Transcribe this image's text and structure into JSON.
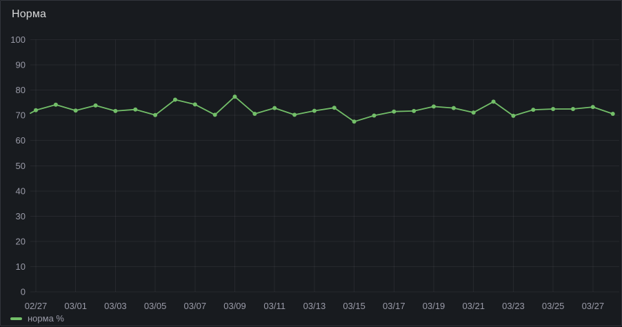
{
  "panel": {
    "title": "Норма"
  },
  "legend": {
    "items": [
      {
        "label": "норма %",
        "color": "#73bf69"
      }
    ]
  },
  "colors": {
    "page_background": "#111217",
    "panel_background": "#181b1f",
    "panel_border": "#33363c",
    "gridline": "rgba(204,204,220,0.08)",
    "tick_text": "rgba(204,204,220,0.72)",
    "title_text": "#d8d9da",
    "series_green": "#73bf69"
  },
  "chart_data": {
    "type": "line",
    "title": "Норма",
    "xlabel": "",
    "ylabel": "",
    "ylim": [
      0,
      100
    ],
    "grid": true,
    "point_markers": true,
    "legend_position": "bottom-left",
    "y_ticks": [
      0,
      10,
      20,
      30,
      40,
      50,
      60,
      70,
      80,
      90,
      100
    ],
    "x": [
      "02/27",
      "02/28",
      "03/01",
      "03/02",
      "03/03",
      "03/04",
      "03/05",
      "03/06",
      "03/07",
      "03/08",
      "03/09",
      "03/10",
      "03/11",
      "03/12",
      "03/13",
      "03/14",
      "03/15",
      "03/16",
      "03/17",
      "03/18",
      "03/19",
      "03/20",
      "03/21",
      "03/22",
      "03/23",
      "03/24",
      "03/25",
      "03/26",
      "03/27",
      "03/28"
    ],
    "x_tick_labels": [
      "02/27",
      "03/01",
      "03/03",
      "03/05",
      "03/07",
      "03/09",
      "03/11",
      "03/13",
      "03/15",
      "03/17",
      "03/19",
      "03/21",
      "03/23",
      "03/25",
      "03/27"
    ],
    "series": [
      {
        "name": "норма %",
        "color": "#73bf69",
        "values": [
          72.0,
          74.2,
          71.9,
          73.9,
          71.7,
          72.3,
          70.1,
          76.2,
          74.3,
          70.2,
          77.4,
          70.6,
          72.9,
          70.2,
          71.8,
          73.0,
          67.5,
          69.9,
          71.5,
          71.7,
          73.5,
          72.9,
          71.1,
          75.4,
          69.8,
          72.2,
          72.5,
          72.5,
          73.3,
          70.6
        ]
      }
    ],
    "clipped_line_start_value": 70.8
  }
}
